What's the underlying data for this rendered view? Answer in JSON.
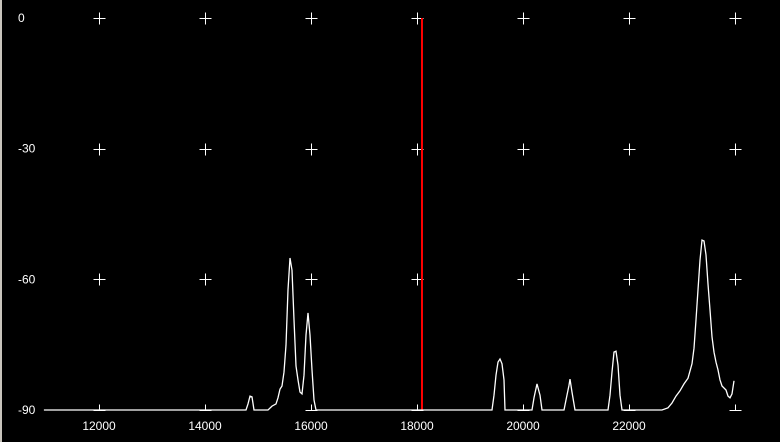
{
  "chart_data": {
    "type": "line",
    "title": "",
    "xlabel": "",
    "ylabel": "",
    "xlim": [
      12000,
      24000
    ],
    "ylim": [
      -90,
      0
    ],
    "x_ticks": [
      12000,
      14000,
      16000,
      18000,
      20000,
      22000
    ],
    "x_tick_labels": [
      "12000",
      "14000",
      "16000",
      "18000",
      "20000",
      "22000"
    ],
    "y_ticks": [
      0,
      -30,
      -60,
      -90
    ],
    "y_tick_labels": [
      "0",
      "-30",
      "-60",
      "-90"
    ],
    "grid_x": [
      12000,
      14000,
      16000,
      18000,
      20000,
      22000,
      24000
    ],
    "grid": "cross-markers",
    "marker": {
      "x": 18094,
      "color": "#ff0000"
    },
    "colors": {
      "background": "#000000",
      "trace": "#ffffff",
      "grid": "#ffffff",
      "marker": "#ff0000"
    },
    "series": [
      {
        "color": "#ffffff",
        "points": [
          [
            10960,
            -90
          ],
          [
            14774,
            -90
          ],
          [
            14811,
            -88.6
          ],
          [
            14849,
            -86.8
          ],
          [
            14887,
            -87.0
          ],
          [
            14925,
            -90
          ],
          [
            15189,
            -90
          ],
          [
            15264,
            -89.1
          ],
          [
            15340,
            -88.6
          ],
          [
            15377,
            -87.2
          ],
          [
            15415,
            -85.2
          ],
          [
            15453,
            -84.5
          ],
          [
            15491,
            -81.3
          ],
          [
            15528,
            -75.1
          ],
          [
            15566,
            -62.4
          ],
          [
            15604,
            -55.1
          ],
          [
            15642,
            -57.9
          ],
          [
            15679,
            -69.3
          ],
          [
            15717,
            -79.9
          ],
          [
            15755,
            -83.1
          ],
          [
            15792,
            -85.9
          ],
          [
            15830,
            -86.3
          ],
          [
            15868,
            -82.0
          ],
          [
            15906,
            -72.8
          ],
          [
            15943,
            -67.7
          ],
          [
            15981,
            -72.8
          ],
          [
            16019,
            -80.8
          ],
          [
            16057,
            -87.7
          ],
          [
            16094,
            -90
          ],
          [
            19415,
            -90
          ],
          [
            19453,
            -86.6
          ],
          [
            19491,
            -82.0
          ],
          [
            19528,
            -79.0
          ],
          [
            19566,
            -78.3
          ],
          [
            19604,
            -79.4
          ],
          [
            19642,
            -83.1
          ],
          [
            19660,
            -90
          ],
          [
            20170,
            -90
          ],
          [
            20208,
            -87.2
          ],
          [
            20264,
            -84.0
          ],
          [
            20321,
            -86.6
          ],
          [
            20358,
            -90
          ],
          [
            20774,
            -90
          ],
          [
            20811,
            -87.7
          ],
          [
            20868,
            -84.3
          ],
          [
            20887,
            -82.9
          ],
          [
            20925,
            -85.9
          ],
          [
            20981,
            -90
          ],
          [
            21604,
            -90
          ],
          [
            21642,
            -86.6
          ],
          [
            21679,
            -81.3
          ],
          [
            21717,
            -76.7
          ],
          [
            21755,
            -76.5
          ],
          [
            21793,
            -79.7
          ],
          [
            21830,
            -86.6
          ],
          [
            21868,
            -90
          ],
          [
            22623,
            -90
          ],
          [
            22736,
            -89.5
          ],
          [
            22811,
            -88.4
          ],
          [
            22887,
            -86.8
          ],
          [
            22962,
            -85.6
          ],
          [
            23038,
            -84.0
          ],
          [
            23113,
            -82.7
          ],
          [
            23189,
            -79.4
          ],
          [
            23226,
            -75.8
          ],
          [
            23264,
            -69.3
          ],
          [
            23302,
            -62.4
          ],
          [
            23340,
            -55.6
          ],
          [
            23377,
            -51.0
          ],
          [
            23415,
            -51.2
          ],
          [
            23453,
            -54.4
          ],
          [
            23491,
            -61.1
          ],
          [
            23528,
            -67.0
          ],
          [
            23566,
            -73.2
          ],
          [
            23604,
            -76.7
          ],
          [
            23642,
            -79.0
          ],
          [
            23679,
            -80.8
          ],
          [
            23717,
            -83.1
          ],
          [
            23755,
            -84.5
          ],
          [
            23830,
            -85.4
          ],
          [
            23868,
            -86.8
          ],
          [
            23906,
            -87.2
          ],
          [
            23943,
            -86.3
          ],
          [
            23981,
            -83.3
          ]
        ]
      }
    ]
  }
}
